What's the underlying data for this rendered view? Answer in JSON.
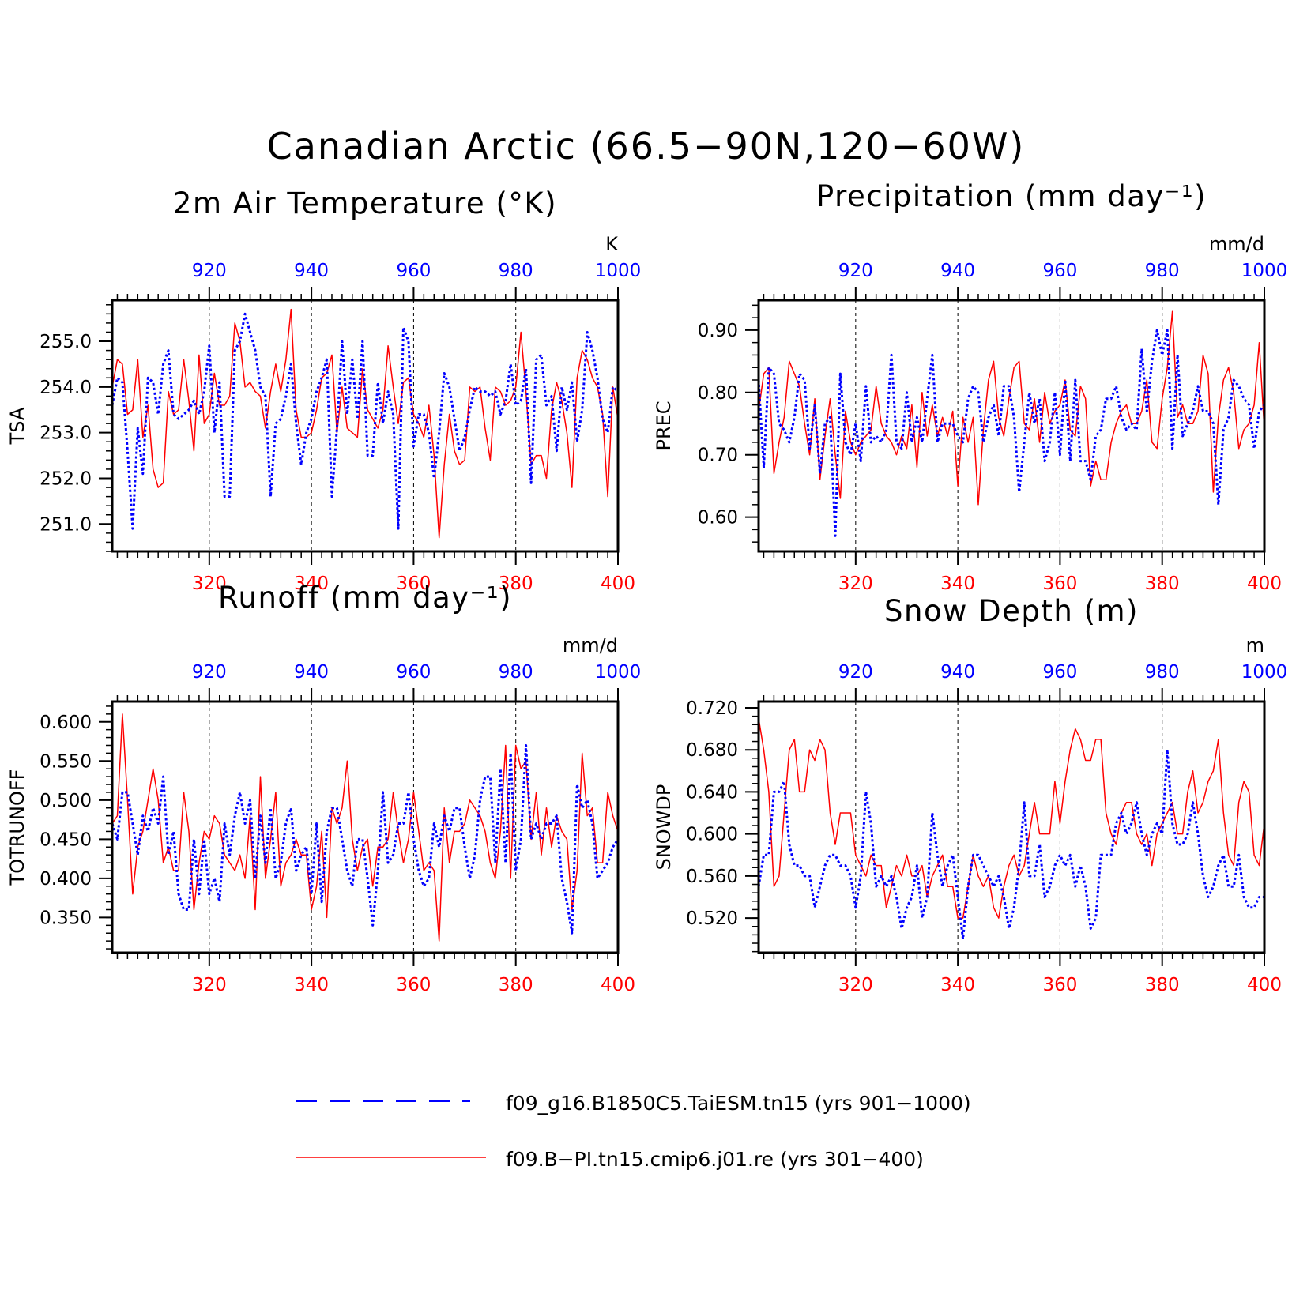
{
  "figure_title": "Canadian Arctic (66.5−90N,120−60W)",
  "colors": {
    "primary_axis": "#ff0000",
    "secondary_axis": "#0000ff",
    "frame": "#000000"
  },
  "legend": [
    {
      "label": "f09_g16.B1850C5.TaiESM.tn15 (yrs 901−1000)",
      "color": "#0000ff",
      "style": "dashed"
    },
    {
      "label": "f09.B−PI.tn15.cmip6.j01.re (yrs 301−400)",
      "color": "#ff0000",
      "style": "solid"
    }
  ],
  "chart_data": [
    {
      "type": "line",
      "title": "2m Air Temperature (°K)",
      "ylabel": "TSA",
      "unit": "K",
      "ylim": [
        250.4,
        255.9
      ],
      "yticks": [
        "251.0",
        "252.0",
        "253.0",
        "254.0",
        "255.0"
      ],
      "xlim": [
        301,
        400
      ],
      "xticks_bottom": [
        "320",
        "340",
        "360",
        "380",
        "400"
      ],
      "xticks_top": [
        "920",
        "940",
        "960",
        "980",
        "1000"
      ],
      "series": [
        {
          "name": "f09.B−PI.tn15.cmip6.j01.re (yrs 301−400)",
          "color": "#ff0000",
          "style": "solid",
          "values": [
            254.0,
            254.6,
            254.5,
            253.4,
            253.5,
            254.6,
            252.9,
            253.6,
            252.2,
            251.8,
            251.9,
            253.9,
            253.4,
            253.5,
            254.6,
            253.7,
            252.6,
            254.7,
            253.2,
            253.4,
            254.3,
            253.6,
            253.6,
            253.8,
            255.4,
            255.0,
            254.0,
            254.1,
            253.9,
            253.8,
            253.1,
            253.9,
            254.5,
            253.9,
            254.6,
            255.7,
            253.5,
            252.9,
            252.9,
            253.0,
            253.5,
            254.2,
            254.3,
            254.7,
            253.0,
            254.0,
            253.1,
            253.0,
            252.9,
            254.4,
            253.5,
            253.3,
            253.1,
            253.5,
            254.9,
            254.0,
            253.2,
            254.1,
            254.2,
            253.4,
            253.2,
            252.9,
            253.6,
            252.5,
            250.7,
            252.3,
            253.4,
            252.6,
            252.3,
            252.4,
            254.0,
            253.9,
            254.0,
            253.1,
            252.4,
            254.0,
            253.9,
            253.6,
            253.7,
            254.0,
            255.2,
            253.9,
            252.3,
            252.5,
            252.5,
            252.0,
            253.5,
            254.1,
            253.7,
            253.0,
            251.8,
            254.2,
            254.8,
            254.6,
            254.2,
            254.0,
            253.4,
            251.6,
            254.0,
            253.3
          ]
        },
        {
          "name": "f09_g16.B1850C5.TaiESM.tn15 (yrs 901−1000)",
          "color": "#0000ff",
          "style": "dashed",
          "values": [
            253.6,
            254.2,
            254.1,
            252.6,
            250.9,
            253.1,
            252.1,
            254.2,
            254.1,
            253.4,
            254.5,
            254.8,
            253.4,
            253.3,
            253.4,
            253.5,
            253.7,
            253.4,
            253.9,
            254.9,
            253.0,
            254.1,
            251.6,
            251.6,
            254.8,
            255.0,
            255.6,
            255.2,
            254.8,
            254.0,
            253.8,
            251.6,
            253.2,
            253.3,
            253.8,
            254.5,
            253.2,
            252.3,
            253.0,
            253.3,
            253.9,
            254.2,
            254.6,
            251.6,
            253.1,
            255.0,
            253.4,
            254.6,
            253.3,
            255.0,
            252.5,
            252.5,
            254.1,
            253.2,
            253.9,
            253.4,
            250.9,
            255.3,
            255.0,
            252.7,
            253.4,
            253.4,
            253.0,
            252.0,
            253.0,
            254.3,
            254.0,
            253.3,
            252.6,
            252.9,
            253.5,
            254.0,
            253.9,
            253.9,
            253.8,
            253.9,
            253.4,
            253.7,
            254.5,
            253.6,
            253.7,
            254.4,
            251.9,
            254.6,
            254.7,
            253.6,
            253.8,
            252.6,
            254.0,
            253.5,
            254.1,
            252.8,
            253.5,
            255.2,
            254.8,
            254.2,
            253.3,
            253.0,
            254.0,
            253.9
          ]
        }
      ]
    },
    {
      "type": "line",
      "title": "Precipitation (mm day⁻¹)",
      "ylabel": "PREC",
      "unit": "mm/d",
      "ylim": [
        0.545,
        0.948
      ],
      "yticks": [
        "0.60",
        "0.70",
        "0.80",
        "0.90"
      ],
      "xlim": [
        301,
        400
      ],
      "xticks_bottom": [
        "320",
        "340",
        "360",
        "380",
        "400"
      ],
      "xticks_top": [
        "920",
        "940",
        "960",
        "980",
        "1000"
      ],
      "series": [
        {
          "name": "f09.B−PI.tn15.cmip6.j01.re (yrs 301−400)",
          "color": "#ff0000",
          "style": "solid",
          "values": [
            0.77,
            0.83,
            0.84,
            0.67,
            0.72,
            0.76,
            0.85,
            0.83,
            0.81,
            0.75,
            0.7,
            0.79,
            0.66,
            0.73,
            0.79,
            0.7,
            0.63,
            0.77,
            0.72,
            0.7,
            0.72,
            0.73,
            0.74,
            0.81,
            0.75,
            0.73,
            0.72,
            0.7,
            0.73,
            0.71,
            0.78,
            0.68,
            0.8,
            0.73,
            0.78,
            0.73,
            0.76,
            0.73,
            0.77,
            0.65,
            0.76,
            0.72,
            0.76,
            0.62,
            0.74,
            0.82,
            0.85,
            0.76,
            0.73,
            0.79,
            0.84,
            0.85,
            0.75,
            0.74,
            0.79,
            0.72,
            0.8,
            0.75,
            0.77,
            0.78,
            0.82,
            0.74,
            0.73,
            0.81,
            0.79,
            0.65,
            0.69,
            0.66,
            0.66,
            0.72,
            0.75,
            0.77,
            0.78,
            0.75,
            0.75,
            0.77,
            0.82,
            0.72,
            0.71,
            0.79,
            0.84,
            0.93,
            0.76,
            0.78,
            0.75,
            0.75,
            0.77,
            0.86,
            0.83,
            0.64,
            0.76,
            0.82,
            0.84,
            0.8,
            0.71,
            0.74,
            0.75,
            0.78,
            0.88,
            0.74
          ]
        },
        {
          "name": "f09_g16.B1850C5.TaiESM.tn15 (yrs 901−1000)",
          "color": "#0000ff",
          "style": "dashed",
          "values": [
            0.82,
            0.68,
            0.84,
            0.83,
            0.75,
            0.74,
            0.72,
            0.76,
            0.83,
            0.82,
            0.71,
            0.78,
            0.67,
            0.75,
            0.76,
            0.57,
            0.83,
            0.72,
            0.7,
            0.75,
            0.69,
            0.81,
            0.72,
            0.73,
            0.72,
            0.74,
            0.86,
            0.72,
            0.71,
            0.8,
            0.72,
            0.76,
            0.72,
            0.79,
            0.86,
            0.72,
            0.75,
            0.75,
            0.75,
            0.73,
            0.72,
            0.79,
            0.81,
            0.8,
            0.72,
            0.76,
            0.78,
            0.73,
            0.81,
            0.81,
            0.76,
            0.64,
            0.72,
            0.8,
            0.75,
            0.79,
            0.69,
            0.72,
            0.8,
            0.7,
            0.82,
            0.69,
            0.82,
            0.69,
            0.69,
            0.66,
            0.73,
            0.74,
            0.79,
            0.79,
            0.81,
            0.76,
            0.74,
            0.75,
            0.74,
            0.87,
            0.77,
            0.85,
            0.9,
            0.86,
            0.9,
            0.71,
            0.86,
            0.73,
            0.75,
            0.77,
            0.81,
            0.77,
            0.77,
            0.75,
            0.62,
            0.74,
            0.76,
            0.82,
            0.81,
            0.79,
            0.78,
            0.71,
            0.77,
            0.78
          ]
        }
      ]
    },
    {
      "type": "line",
      "title": "Runoff (mm day⁻¹)",
      "ylabel": "TOTRUNOFF",
      "unit": "mm/d",
      "ylim": [
        0.305,
        0.626
      ],
      "yticks": [
        "0.350",
        "0.400",
        "0.450",
        "0.500",
        "0.550",
        "0.600"
      ],
      "xlim": [
        301,
        400
      ],
      "xticks_bottom": [
        "320",
        "340",
        "360",
        "380",
        "400"
      ],
      "xticks_top": [
        "920",
        "940",
        "960",
        "980",
        "1000"
      ],
      "series": [
        {
          "name": "f09.B−PI.tn15.cmip6.j01.re (yrs 301−400)",
          "color": "#ff0000",
          "style": "solid",
          "values": [
            0.47,
            0.48,
            0.61,
            0.5,
            0.38,
            0.44,
            0.46,
            0.5,
            0.54,
            0.5,
            0.42,
            0.44,
            0.41,
            0.41,
            0.51,
            0.46,
            0.36,
            0.42,
            0.46,
            0.45,
            0.48,
            0.47,
            0.43,
            0.42,
            0.41,
            0.43,
            0.4,
            0.48,
            0.36,
            0.53,
            0.4,
            0.45,
            0.51,
            0.39,
            0.42,
            0.43,
            0.45,
            0.43,
            0.43,
            0.36,
            0.39,
            0.46,
            0.35,
            0.49,
            0.47,
            0.49,
            0.55,
            0.45,
            0.41,
            0.44,
            0.45,
            0.39,
            0.44,
            0.44,
            0.45,
            0.51,
            0.46,
            0.42,
            0.45,
            0.51,
            0.46,
            0.41,
            0.42,
            0.41,
            0.32,
            0.49,
            0.42,
            0.46,
            0.46,
            0.47,
            0.5,
            0.49,
            0.48,
            0.46,
            0.42,
            0.4,
            0.46,
            0.57,
            0.4,
            0.57,
            0.54,
            0.55,
            0.45,
            0.51,
            0.43,
            0.49,
            0.44,
            0.48,
            0.46,
            0.45,
            0.36,
            0.41,
            0.56,
            0.48,
            0.49,
            0.42,
            0.42,
            0.51,
            0.48,
            0.46
          ]
        },
        {
          "name": "f09_g16.B1850C5.TaiESM.tn15 (yrs 901−1000)",
          "color": "#0000ff",
          "style": "dashed",
          "values": [
            0.47,
            0.45,
            0.51,
            0.51,
            0.47,
            0.43,
            0.48,
            0.46,
            0.49,
            0.47,
            0.53,
            0.43,
            0.46,
            0.38,
            0.36,
            0.36,
            0.45,
            0.38,
            0.45,
            0.38,
            0.4,
            0.37,
            0.47,
            0.43,
            0.48,
            0.51,
            0.47,
            0.5,
            0.4,
            0.48,
            0.42,
            0.49,
            0.4,
            0.42,
            0.47,
            0.49,
            0.41,
            0.43,
            0.44,
            0.38,
            0.47,
            0.37,
            0.46,
            0.49,
            0.49,
            0.45,
            0.41,
            0.39,
            0.45,
            0.45,
            0.4,
            0.34,
            0.41,
            0.51,
            0.42,
            0.43,
            0.47,
            0.47,
            0.51,
            0.45,
            0.41,
            0.39,
            0.4,
            0.47,
            0.44,
            0.48,
            0.46,
            0.49,
            0.49,
            0.44,
            0.4,
            0.43,
            0.5,
            0.53,
            0.53,
            0.42,
            0.54,
            0.42,
            0.56,
            0.41,
            0.45,
            0.57,
            0.45,
            0.47,
            0.45,
            0.47,
            0.47,
            0.48,
            0.4,
            0.37,
            0.33,
            0.52,
            0.49,
            0.5,
            0.47,
            0.4,
            0.41,
            0.42,
            0.44,
            0.45
          ]
        }
      ]
    },
    {
      "type": "line",
      "title": "Snow Depth (m)",
      "ylabel": "SNOWDP",
      "unit": "m",
      "ylim": [
        0.487,
        0.726
      ],
      "yticks": [
        "0.520",
        "0.560",
        "0.600",
        "0.640",
        "0.680",
        "0.720"
      ],
      "xlim": [
        301,
        400
      ],
      "xticks_bottom": [
        "320",
        "340",
        "360",
        "380",
        "400"
      ],
      "xticks_top": [
        "920",
        "940",
        "960",
        "980",
        "1000"
      ],
      "series": [
        {
          "name": "f09.B−PI.tn15.cmip6.j01.re (yrs 301−400)",
          "color": "#ff0000",
          "style": "solid",
          "values": [
            0.71,
            0.68,
            0.64,
            0.55,
            0.56,
            0.62,
            0.68,
            0.69,
            0.64,
            0.64,
            0.68,
            0.67,
            0.69,
            0.68,
            0.62,
            0.59,
            0.62,
            0.62,
            0.62,
            0.58,
            0.57,
            0.56,
            0.58,
            0.57,
            0.57,
            0.53,
            0.55,
            0.57,
            0.56,
            0.58,
            0.56,
            0.56,
            0.57,
            0.54,
            0.56,
            0.57,
            0.58,
            0.55,
            0.55,
            0.52,
            0.52,
            0.55,
            0.58,
            0.56,
            0.55,
            0.56,
            0.53,
            0.52,
            0.55,
            0.57,
            0.58,
            0.56,
            0.57,
            0.6,
            0.63,
            0.6,
            0.6,
            0.6,
            0.65,
            0.61,
            0.65,
            0.68,
            0.7,
            0.69,
            0.67,
            0.67,
            0.69,
            0.69,
            0.62,
            0.6,
            0.59,
            0.62,
            0.63,
            0.63,
            0.6,
            0.59,
            0.6,
            0.57,
            0.6,
            0.61,
            0.62,
            0.63,
            0.6,
            0.6,
            0.64,
            0.66,
            0.62,
            0.63,
            0.65,
            0.66,
            0.69,
            0.62,
            0.58,
            0.57,
            0.63,
            0.65,
            0.64,
            0.58,
            0.57,
            0.61
          ]
        },
        {
          "name": "f09_g16.B1850C5.TaiESM.tn15 (yrs 901−1000)",
          "color": "#0000ff",
          "style": "dashed",
          "values": [
            0.55,
            0.58,
            0.58,
            0.64,
            0.64,
            0.65,
            0.59,
            0.57,
            0.57,
            0.56,
            0.56,
            0.53,
            0.55,
            0.57,
            0.58,
            0.58,
            0.57,
            0.57,
            0.56,
            0.53,
            0.56,
            0.64,
            0.61,
            0.55,
            0.56,
            0.55,
            0.56,
            0.54,
            0.51,
            0.53,
            0.54,
            0.57,
            0.52,
            0.54,
            0.62,
            0.58,
            0.55,
            0.57,
            0.58,
            0.54,
            0.5,
            0.55,
            0.58,
            0.58,
            0.57,
            0.56,
            0.55,
            0.56,
            0.54,
            0.51,
            0.53,
            0.57,
            0.63,
            0.56,
            0.56,
            0.59,
            0.54,
            0.55,
            0.57,
            0.58,
            0.57,
            0.58,
            0.55,
            0.57,
            0.55,
            0.51,
            0.52,
            0.58,
            0.58,
            0.58,
            0.61,
            0.62,
            0.6,
            0.61,
            0.63,
            0.6,
            0.58,
            0.6,
            0.61,
            0.6,
            0.68,
            0.61,
            0.59,
            0.59,
            0.6,
            0.63,
            0.6,
            0.56,
            0.54,
            0.55,
            0.57,
            0.58,
            0.55,
            0.55,
            0.58,
            0.54,
            0.53,
            0.53,
            0.54,
            0.54
          ]
        }
      ]
    }
  ]
}
